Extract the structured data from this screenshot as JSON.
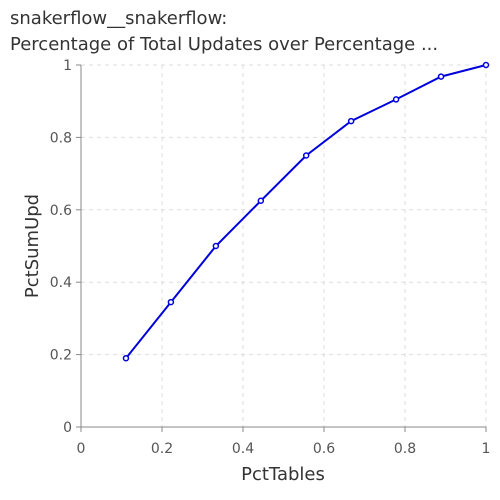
{
  "chart_data": {
    "type": "line",
    "title_line1": "snakerflow__snakerflow:",
    "title_line2": "Percentage of Total Updates over Percentage ...",
    "xlabel": "PctTables",
    "ylabel": "PctSumUpd",
    "xlim": [
      0,
      1
    ],
    "ylim": [
      0,
      1
    ],
    "xticks": [
      "0",
      "0.2",
      "0.4",
      "0.6",
      "0.8",
      "1"
    ],
    "yticks": [
      "0",
      "0.2",
      "0.4",
      "0.6",
      "0.8",
      "1"
    ],
    "grid": true,
    "series": [
      {
        "color": "#0000dd",
        "x": [
          0.111,
          0.222,
          0.333,
          0.444,
          0.556,
          0.667,
          0.778,
          0.889,
          1.0
        ],
        "y": [
          0.19,
          0.345,
          0.5,
          0.625,
          0.75,
          0.845,
          0.905,
          0.968,
          1.0
        ]
      }
    ]
  }
}
